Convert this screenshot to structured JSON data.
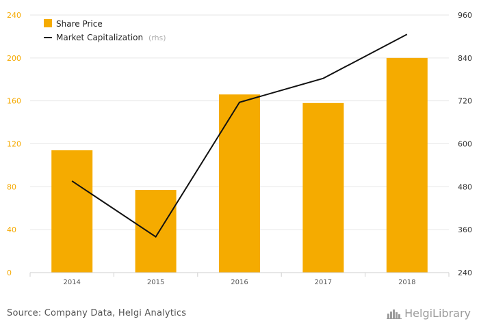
{
  "chart_data": {
    "type": "bar+line",
    "categories": [
      "2014",
      "2015",
      "2016",
      "2017",
      "2018"
    ],
    "series": [
      {
        "name": "Share Price",
        "type": "bar",
        "axis": "left",
        "values": [
          114,
          77,
          166,
          158,
          200
        ]
      },
      {
        "name": "Market Capitalization",
        "type": "line",
        "axis": "right",
        "values": [
          496,
          340,
          716,
          783,
          906
        ]
      }
    ],
    "y_left": {
      "ylim": [
        0,
        240
      ],
      "ticks": [
        "0",
        "40",
        "80",
        "120",
        "160",
        "200",
        "240"
      ]
    },
    "y_right": {
      "ylim": [
        240,
        960
      ],
      "ticks": [
        "240",
        "360",
        "480",
        "600",
        "720",
        "840",
        "960"
      ]
    },
    "legend": {
      "items": [
        "Share Price",
        "Market Capitalization"
      ],
      "rhs_note": "(rhs)",
      "position": "top-left"
    },
    "grid": true
  },
  "colors": {
    "bar": "#f5ab00",
    "line": "#111111",
    "left_axis": "#f5a900",
    "grid": "#e6e6e6"
  },
  "footer": {
    "source": "Source: Company Data, Helgi Analytics",
    "brand": "HelgiLibrary",
    "brand_icon": "helgi-logo-icon"
  }
}
